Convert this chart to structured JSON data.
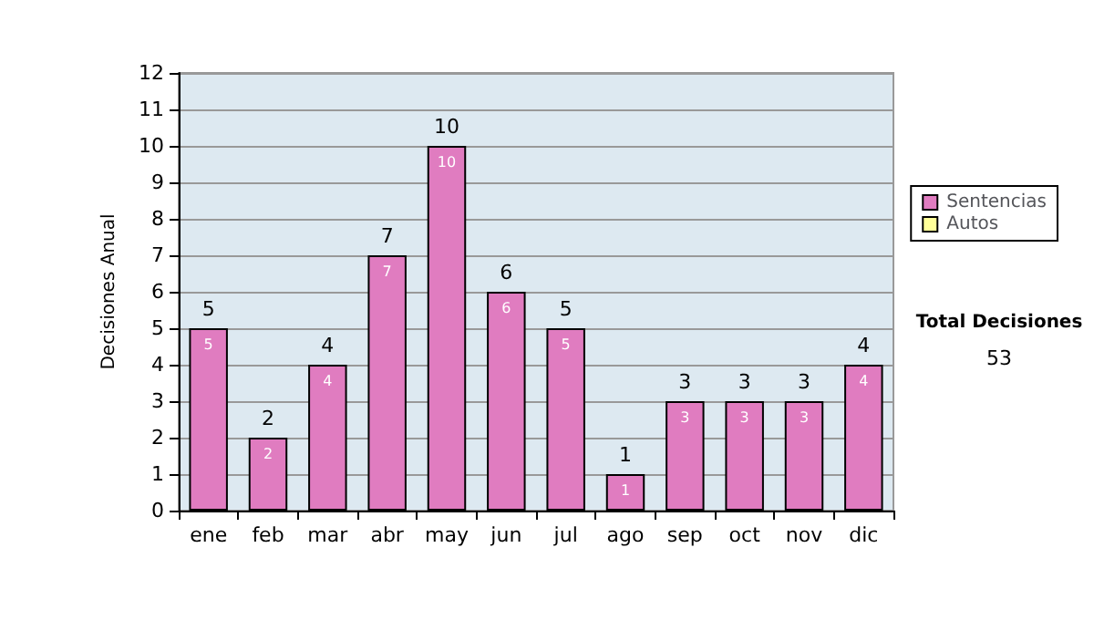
{
  "chart_data": {
    "type": "bar",
    "ylabel": "Decisiones Anual",
    "categories": [
      "ene",
      "feb",
      "mar",
      "abr",
      "may",
      "jun",
      "jul",
      "ago",
      "sep",
      "oct",
      "nov",
      "dic"
    ],
    "series": [
      {
        "name": "Sentencias",
        "color": "#e07cc0",
        "values": [
          5,
          2,
          4,
          7,
          10,
          6,
          5,
          1,
          3,
          3,
          3,
          4
        ],
        "value_labels": [
          "5",
          "2",
          "4",
          "7",
          "10",
          "6",
          "5",
          "1",
          "3",
          "3",
          "3",
          "4"
        ]
      },
      {
        "name": "Autos",
        "color": "#ffff99",
        "values": [
          0,
          0,
          0,
          0,
          0,
          0,
          0,
          0,
          0,
          0,
          0,
          0
        ]
      }
    ],
    "stacked": true,
    "totals": [
      "5",
      "2",
      "4",
      "7",
      "10",
      "6",
      "5",
      "1",
      "3",
      "3",
      "3",
      "4"
    ],
    "ylim": [
      0,
      12
    ],
    "yticks": [
      0,
      1,
      2,
      3,
      4,
      5,
      6,
      7,
      8,
      9,
      10,
      11,
      12
    ],
    "grid": "y",
    "legend": "right",
    "annotations": [
      "Total Decisiones",
      "53"
    ]
  }
}
